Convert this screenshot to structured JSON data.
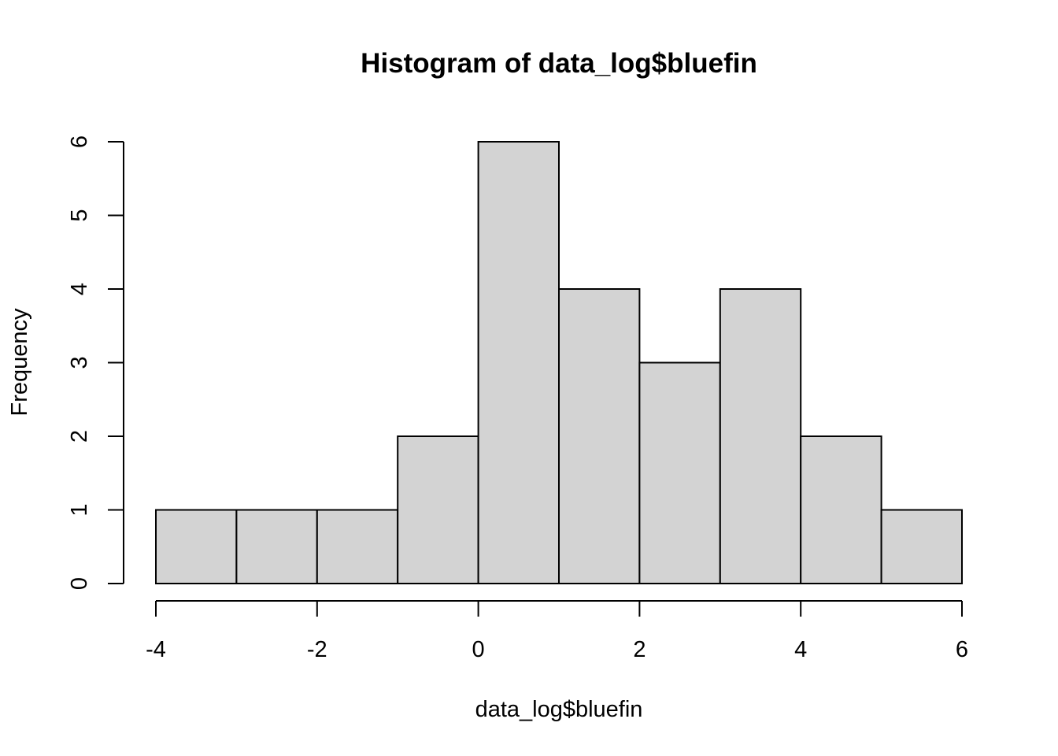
{
  "chart_data": {
    "type": "bar",
    "title": "Histogram of data_log$bluefin",
    "xlabel": "data_log$bluefin",
    "ylabel": "Frequency",
    "bins": [
      {
        "x0": -4,
        "x1": -3,
        "count": 1
      },
      {
        "x0": -3,
        "x1": -2,
        "count": 1
      },
      {
        "x0": -2,
        "x1": -1,
        "count": 1
      },
      {
        "x0": -1,
        "x1": 0,
        "count": 2
      },
      {
        "x0": 0,
        "x1": 1,
        "count": 6
      },
      {
        "x0": 1,
        "x1": 2,
        "count": 4
      },
      {
        "x0": 2,
        "x1": 3,
        "count": 3
      },
      {
        "x0": 3,
        "x1": 4,
        "count": 4
      },
      {
        "x0": 4,
        "x1": 5,
        "count": 2
      },
      {
        "x0": 5,
        "x1": 6,
        "count": 1
      }
    ],
    "xlim": [
      -4,
      6
    ],
    "ylim": [
      0,
      6
    ],
    "x_ticks": [
      "-4",
      "-2",
      "0",
      "2",
      "4",
      "6"
    ],
    "y_ticks": [
      "0",
      "1",
      "2",
      "3",
      "4",
      "5",
      "6"
    ],
    "bar_fill": "#d3d3d3",
    "bar_stroke": "#000000",
    "grid": false
  }
}
